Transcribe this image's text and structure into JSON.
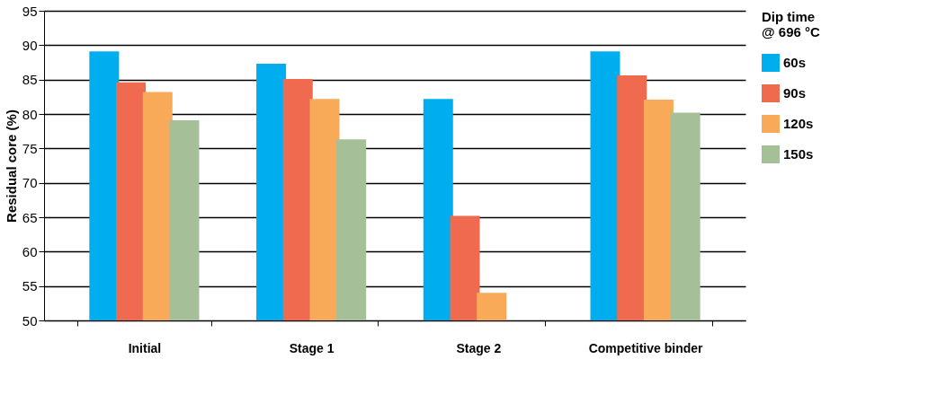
{
  "chart_data": {
    "type": "bar",
    "ylabel": "Residual core (%)",
    "legend_title": "Dip time\n@ 696 °C",
    "categories": [
      "Initial",
      "Stage 1",
      "Stage 2",
      "Competitive binder"
    ],
    "series": [
      {
        "name": "60s",
        "color": "#00aeef",
        "values": [
          89.1,
          87.3,
          82.2,
          89.1
        ]
      },
      {
        "name": "90s",
        "color": "#ef6a4f",
        "values": [
          84.6,
          85.1,
          65.2,
          85.6
        ]
      },
      {
        "name": "120s",
        "color": "#f9aa59",
        "values": [
          83.2,
          82.2,
          54.0,
          82.1
        ]
      },
      {
        "name": "150s",
        "color": "#a5bf98",
        "values": [
          79.1,
          76.3,
          null,
          80.2
        ]
      }
    ],
    "ylim": [
      50,
      95
    ],
    "yticks": [
      50,
      55,
      60,
      65,
      70,
      75,
      80,
      85,
      90,
      95
    ],
    "grid": "y",
    "legend": "right"
  }
}
